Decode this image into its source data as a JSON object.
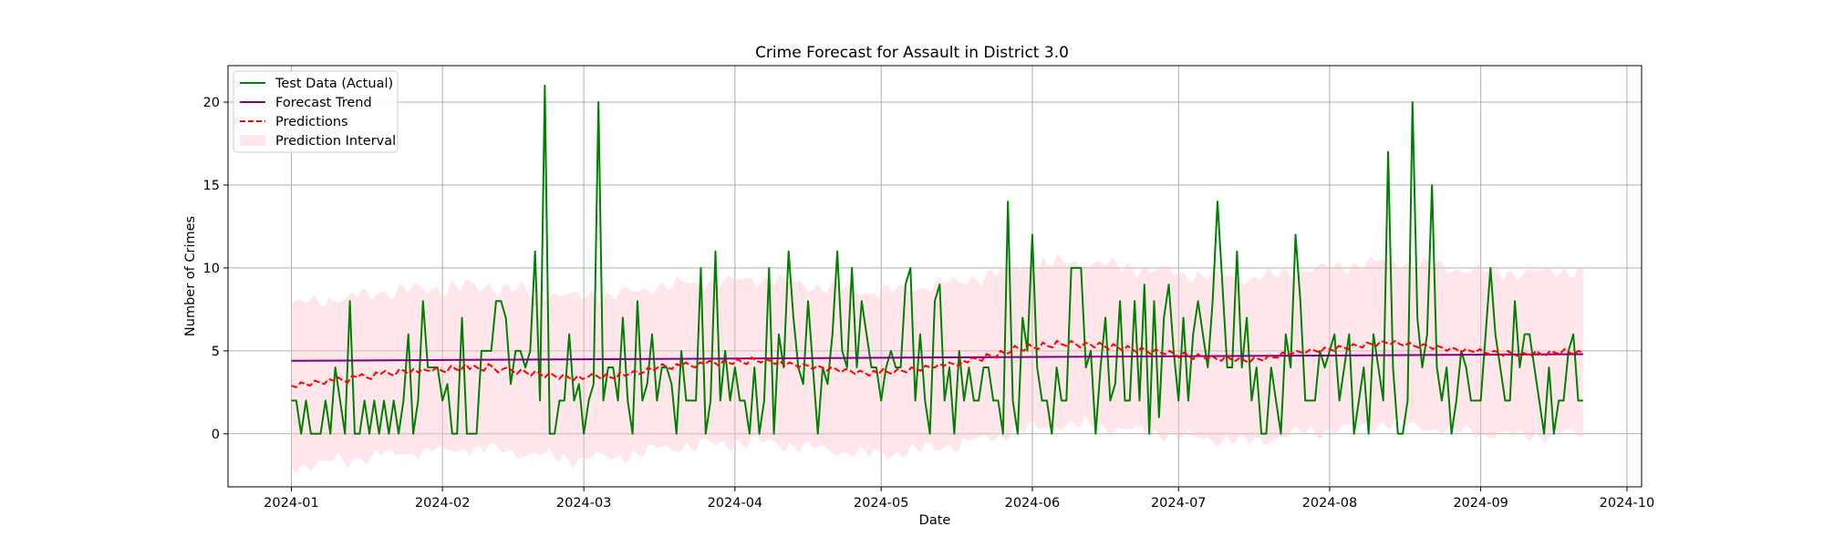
{
  "chart_data": {
    "type": "line",
    "title": "Crime Forecast for Assault in District 3.0",
    "xlabel": "Date",
    "ylabel": "Number of Crimes",
    "x_start": "2024-01-01",
    "x_end": "2024-09-22",
    "xlim": [
      "2023-12-19",
      "2024-10-04"
    ],
    "ylim": [
      -3.2,
      22.2
    ],
    "x_ticks": [
      "2024-01-01",
      "2024-02-01",
      "2024-03-01",
      "2024-04-01",
      "2024-05-01",
      "2024-06-01",
      "2024-07-01",
      "2024-08-01",
      "2024-09-01",
      "2024-10-01"
    ],
    "y_ticks": [
      0,
      5,
      10,
      15,
      20
    ],
    "grid": true,
    "legend_position": "top-left",
    "series": [
      {
        "name": "Test Data (Actual)",
        "style": "solid",
        "color": "#008000",
        "values": [
          2,
          2,
          0,
          2,
          0,
          0,
          0,
          2,
          0,
          4,
          2,
          0,
          8,
          0,
          0,
          2,
          0,
          2,
          0,
          2,
          0,
          2,
          0,
          2,
          6,
          0,
          2,
          8,
          4,
          4,
          4,
          2,
          3,
          0,
          0,
          7,
          0,
          0,
          0,
          5,
          5,
          5,
          8,
          8,
          7,
          3,
          5,
          5,
          4,
          5,
          11,
          2,
          21,
          0,
          0,
          2,
          2,
          6,
          2,
          3,
          0,
          2,
          3,
          20,
          2,
          4,
          4,
          2,
          7,
          2,
          0,
          8,
          2,
          3,
          6,
          2,
          4,
          4,
          3,
          0,
          5,
          2,
          2,
          2,
          10,
          0,
          2,
          11,
          2,
          5,
          2,
          4,
          2,
          2,
          0,
          4,
          0,
          2,
          10,
          0,
          6,
          4,
          11,
          7,
          4,
          3,
          8,
          4,
          0,
          4,
          3,
          6,
          11,
          5,
          4,
          10,
          4,
          8,
          6,
          4,
          4,
          2,
          4,
          5,
          4,
          4,
          9,
          10,
          2,
          6,
          2,
          0,
          8,
          9,
          2,
          4,
          0,
          5,
          2,
          4,
          2,
          2,
          4,
          4,
          2,
          2,
          0,
          14,
          2,
          0,
          7,
          5,
          12,
          4,
          2,
          2,
          0,
          4,
          2,
          2,
          10,
          10,
          10,
          4,
          5,
          0,
          4,
          7,
          2,
          3,
          8,
          2,
          2,
          8,
          2,
          9,
          0,
          8,
          1,
          7,
          9,
          5,
          2,
          7,
          2,
          6,
          8,
          6,
          4,
          8,
          14,
          9,
          4,
          4,
          11,
          4,
          7,
          2,
          4,
          0,
          0,
          4,
          2,
          0,
          6,
          4,
          12,
          8,
          2,
          2,
          2,
          5,
          4,
          5,
          6,
          2,
          4,
          6,
          0,
          2,
          4,
          0,
          6,
          4,
          2,
          17,
          4,
          0,
          0,
          2,
          20,
          7,
          4,
          6,
          15,
          4,
          2,
          4,
          0,
          2,
          5,
          4,
          2,
          2,
          2,
          6,
          10,
          6,
          4,
          2,
          2,
          8,
          4,
          6,
          6,
          4,
          2,
          0,
          4,
          0,
          2,
          2,
          5,
          6,
          2,
          2
        ]
      },
      {
        "name": "Forecast Trend",
        "style": "solid",
        "color": "#800080",
        "start": 4.4,
        "end": 4.8
      },
      {
        "name": "Predictions",
        "style": "dashed",
        "color": "#ff0000",
        "values": [
          2.9,
          2.8,
          3.1,
          3.0,
          2.9,
          3.2,
          3.1,
          3.0,
          3.3,
          3.2,
          3.4,
          3.2,
          3.1,
          3.5,
          3.4,
          3.6,
          3.4,
          3.3,
          3.7,
          3.6,
          3.8,
          3.6,
          3.5,
          3.9,
          3.8,
          3.6,
          3.9,
          3.7,
          3.9,
          3.8,
          3.8,
          4.0,
          3.8,
          3.7,
          4.1,
          3.9,
          3.8,
          4.2,
          3.9,
          4.1,
          3.9,
          3.8,
          4.2,
          4.0,
          3.7,
          3.9,
          4.0,
          3.8,
          3.6,
          3.9,
          3.7,
          3.5,
          3.8,
          3.6,
          3.4,
          3.7,
          3.5,
          3.3,
          3.6,
          3.4,
          3.2,
          3.5,
          3.3,
          3.4,
          3.6,
          3.5,
          3.3,
          3.6,
          3.4,
          3.3,
          3.7,
          3.5,
          3.6,
          3.8,
          3.6,
          3.7,
          4.0,
          3.8,
          4.0,
          4.2,
          4.0,
          3.9,
          4.2,
          4.1,
          4.3,
          4.1,
          4.0,
          4.3,
          4.2,
          4.4,
          4.3,
          4.1,
          4.4,
          4.3,
          4.2,
          4.5,
          4.3,
          4.2,
          4.6,
          4.4,
          4.3,
          4.5,
          4.4,
          4.2,
          4.4,
          4.1,
          4.3,
          4.2,
          4.0,
          4.2,
          4.1,
          3.9,
          4.1,
          4.0,
          3.8,
          4.0,
          3.9,
          3.7,
          3.9,
          3.8,
          3.6,
          3.8,
          3.7,
          3.5,
          3.8,
          3.6,
          3.9,
          3.7,
          3.6,
          3.9,
          3.8,
          3.7,
          4.0,
          3.9,
          3.8,
          4.1,
          4.0,
          4.0,
          4.2,
          4.1,
          4.3,
          4.2,
          4.1,
          4.4,
          4.3,
          4.6,
          4.5,
          4.4,
          4.8,
          4.7,
          4.6,
          5.0,
          4.8,
          4.9,
          5.3,
          5.1,
          5.0,
          5.4,
          5.2,
          5.1,
          5.5,
          5.3,
          5.2,
          5.6,
          5.4,
          5.3,
          5.6,
          5.4,
          5.2,
          5.5,
          5.4,
          5.2,
          5.5,
          5.3,
          5.1,
          5.4,
          5.2,
          5.0,
          5.3,
          5.1,
          4.9,
          5.2,
          5.0,
          4.8,
          5.1,
          4.9,
          4.8,
          5.0,
          4.8,
          4.6,
          4.9,
          4.7,
          4.5,
          4.8,
          4.6,
          4.5,
          4.7,
          4.5,
          4.4,
          4.7,
          4.5,
          4.4,
          4.6,
          4.4,
          4.3,
          4.6,
          4.5,
          4.4,
          4.7,
          4.6,
          4.6,
          4.9,
          4.8,
          4.8,
          5.0,
          4.9,
          4.9,
          5.1,
          5.0,
          4.9,
          5.2,
          5.1,
          5.0,
          5.3,
          5.2,
          5.1,
          5.4,
          5.3,
          5.2,
          5.5,
          5.4,
          5.3,
          5.6,
          5.5,
          5.4,
          5.6,
          5.4,
          5.3,
          5.5,
          5.3,
          5.2,
          5.4,
          5.3,
          5.1,
          5.3,
          5.2,
          5.0,
          5.2,
          5.1,
          4.9,
          5.1,
          5.0,
          4.9,
          5.1,
          4.9,
          4.8,
          5.0,
          4.9,
          4.7,
          5.0,
          4.8,
          4.7,
          4.9,
          4.8,
          4.7,
          5.0,
          4.8,
          4.7,
          5.0,
          4.9,
          4.8,
          5.1,
          4.9,
          4.8,
          5.0,
          4.9
        ]
      }
    ],
    "interval": {
      "name": "Prediction Interval",
      "color": "#ffc0cb",
      "opacity": 0.4,
      "half_width": 4.9
    },
    "legend": {
      "position": "upper-left",
      "entries": [
        {
          "label": "Test Data (Actual)",
          "color": "#008000",
          "kind": "line"
        },
        {
          "label": "Forecast Trend",
          "color": "#800080",
          "kind": "line"
        },
        {
          "label": "Predictions",
          "color": "#ff0000",
          "kind": "dashed"
        },
        {
          "label": "Prediction Interval",
          "color": "#ffc0cb",
          "kind": "patch"
        }
      ]
    }
  }
}
